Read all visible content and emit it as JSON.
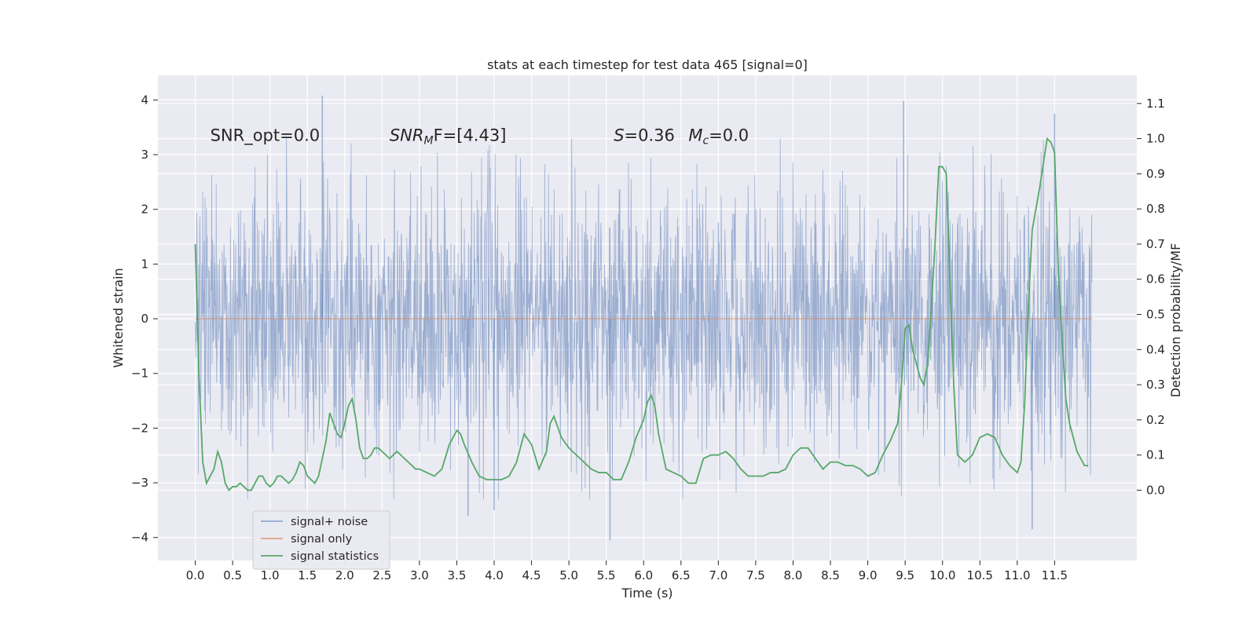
{
  "chart_data": {
    "type": "line",
    "title": "stats at each timestep for test data 465 [signal=0]",
    "xlabel": "Time (s)",
    "ylabel_left": "Whitened strain",
    "ylabel_right": "Detection probability/MF",
    "xlim": [
      -0.5,
      12.6
    ],
    "ylim_left": [
      -4.42,
      4.45
    ],
    "ylim_right": [
      -0.2,
      1.18
    ],
    "x_ticks": [
      0.0,
      0.5,
      1.0,
      1.5,
      2.0,
      2.5,
      3.0,
      3.5,
      4.0,
      4.5,
      5.0,
      5.5,
      6.0,
      6.5,
      7.0,
      7.5,
      8.0,
      8.5,
      9.0,
      9.5,
      10.0,
      10.5,
      11.0,
      11.5
    ],
    "x_tick_labels": [
      "0.0",
      "0.5",
      "1.0",
      "1.5",
      "2.0",
      "2.5",
      "3.0",
      "3.5",
      "4.0",
      "4.5",
      "5.0",
      "5.5",
      "6.0",
      "6.5",
      "7.0",
      "7.5",
      "8.0",
      "8.5",
      "9.0",
      "9.5",
      "10.0",
      "10.5",
      "11.0",
      "11.5"
    ],
    "y_left_ticks": [
      -4,
      -3,
      -2,
      -1,
      0,
      1,
      2,
      3,
      4
    ],
    "y_left_tick_labels": [
      "−4",
      "−3",
      "−2",
      "−1",
      "0",
      "1",
      "2",
      "3",
      "4"
    ],
    "y_right_ticks": [
      0.0,
      0.1,
      0.2,
      0.3,
      0.4,
      0.5,
      0.6,
      0.7,
      0.8,
      0.9,
      1.0,
      1.1
    ],
    "y_right_tick_labels": [
      "0.0",
      "0.1",
      "0.2",
      "0.3",
      "0.4",
      "0.5",
      "0.6",
      "0.7",
      "0.8",
      "0.9",
      "1.0",
      "1.1"
    ],
    "grid": true,
    "legend_position": "lower-left",
    "series": [
      {
        "name": "signal+ noise",
        "axis": "left",
        "color": "#4c72b0",
        "description_x_range": [
          0.0,
          12.0
        ],
        "typical_envelope": [
          -1.9,
          1.9
        ],
        "peak_spikes": [
          {
            "x": 1.7,
            "y": 4.08
          },
          {
            "x": 9.48,
            "y": 3.98
          },
          {
            "x": 11.5,
            "y": 3.75
          },
          {
            "x": 5.55,
            "y": -4.05
          },
          {
            "x": 11.2,
            "y": -3.85
          },
          {
            "x": 4.0,
            "y": -3.5
          },
          {
            "x": 3.65,
            "y": -3.6
          }
        ]
      },
      {
        "name": "signal only",
        "axis": "left",
        "color": "#dd8452",
        "x": [
          0.0,
          12.0
        ],
        "y": [
          0.0,
          0.0
        ]
      },
      {
        "name": "signal statistics",
        "axis": "right",
        "color": "#55a868",
        "x": [
          0.0,
          0.05,
          0.1,
          0.15,
          0.2,
          0.25,
          0.3,
          0.35,
          0.4,
          0.45,
          0.5,
          0.55,
          0.6,
          0.65,
          0.7,
          0.75,
          0.8,
          0.85,
          0.9,
          0.95,
          1.0,
          1.05,
          1.1,
          1.15,
          1.2,
          1.25,
          1.3,
          1.35,
          1.4,
          1.45,
          1.5,
          1.55,
          1.6,
          1.65,
          1.7,
          1.75,
          1.8,
          1.85,
          1.9,
          1.95,
          2.0,
          2.05,
          2.1,
          2.15,
          2.2,
          2.25,
          2.3,
          2.35,
          2.4,
          2.45,
          2.5,
          2.55,
          2.6,
          2.65,
          2.7,
          2.75,
          2.8,
          2.85,
          2.9,
          2.95,
          3.0,
          3.1,
          3.2,
          3.3,
          3.4,
          3.5,
          3.55,
          3.6,
          3.7,
          3.8,
          3.9,
          4.0,
          4.1,
          4.2,
          4.3,
          4.4,
          4.5,
          4.6,
          4.7,
          4.75,
          4.8,
          4.9,
          5.0,
          5.1,
          5.2,
          5.3,
          5.4,
          5.5,
          5.6,
          5.7,
          5.8,
          5.9,
          6.0,
          6.05,
          6.1,
          6.15,
          6.2,
          6.3,
          6.4,
          6.5,
          6.6,
          6.7,
          6.8,
          6.9,
          7.0,
          7.1,
          7.2,
          7.3,
          7.4,
          7.5,
          7.6,
          7.7,
          7.8,
          7.9,
          8.0,
          8.1,
          8.2,
          8.3,
          8.4,
          8.5,
          8.6,
          8.7,
          8.8,
          8.9,
          9.0,
          9.1,
          9.2,
          9.3,
          9.4,
          9.45,
          9.5,
          9.55,
          9.6,
          9.7,
          9.75,
          9.8,
          9.85,
          9.9,
          9.95,
          10.0,
          10.05,
          10.1,
          10.15,
          10.2,
          10.3,
          10.4,
          10.5,
          10.6,
          10.7,
          10.8,
          10.9,
          11.0,
          11.05,
          11.1,
          11.15,
          11.2,
          11.25,
          11.3,
          11.35,
          11.4,
          11.45,
          11.5,
          11.55,
          11.6,
          11.65,
          11.7,
          11.75,
          11.8,
          11.85,
          11.9,
          11.95
        ],
        "y": [
          0.7,
          0.32,
          0.08,
          0.02,
          0.04,
          0.06,
          0.11,
          0.08,
          0.02,
          0.0,
          0.01,
          0.01,
          0.02,
          0.01,
          0.0,
          0.0,
          0.02,
          0.04,
          0.04,
          0.02,
          0.01,
          0.02,
          0.04,
          0.04,
          0.03,
          0.02,
          0.03,
          0.05,
          0.08,
          0.07,
          0.04,
          0.03,
          0.02,
          0.04,
          0.09,
          0.14,
          0.22,
          0.19,
          0.16,
          0.15,
          0.19,
          0.24,
          0.26,
          0.2,
          0.12,
          0.09,
          0.09,
          0.1,
          0.12,
          0.12,
          0.11,
          0.1,
          0.09,
          0.1,
          0.11,
          0.1,
          0.09,
          0.08,
          0.07,
          0.06,
          0.06,
          0.05,
          0.04,
          0.06,
          0.13,
          0.17,
          0.16,
          0.13,
          0.08,
          0.04,
          0.03,
          0.03,
          0.03,
          0.04,
          0.08,
          0.16,
          0.13,
          0.06,
          0.11,
          0.19,
          0.21,
          0.15,
          0.12,
          0.1,
          0.08,
          0.06,
          0.05,
          0.05,
          0.03,
          0.03,
          0.08,
          0.15,
          0.2,
          0.25,
          0.27,
          0.24,
          0.16,
          0.06,
          0.05,
          0.04,
          0.02,
          0.02,
          0.09,
          0.1,
          0.1,
          0.11,
          0.09,
          0.06,
          0.04,
          0.04,
          0.04,
          0.05,
          0.05,
          0.06,
          0.1,
          0.12,
          0.12,
          0.09,
          0.06,
          0.08,
          0.08,
          0.07,
          0.07,
          0.06,
          0.04,
          0.05,
          0.1,
          0.14,
          0.19,
          0.3,
          0.46,
          0.47,
          0.4,
          0.32,
          0.3,
          0.36,
          0.52,
          0.7,
          0.92,
          0.92,
          0.9,
          0.6,
          0.3,
          0.1,
          0.08,
          0.1,
          0.15,
          0.16,
          0.15,
          0.1,
          0.07,
          0.05,
          0.08,
          0.25,
          0.53,
          0.74,
          0.8,
          0.86,
          0.93,
          1.0,
          0.99,
          0.96,
          0.62,
          0.43,
          0.26,
          0.19,
          0.15,
          0.11,
          0.09,
          0.07,
          0.07
        ]
      }
    ],
    "annotations": [
      {
        "text": "SNR_opt=0.0",
        "x": 0.2,
        "y": 3.25
      },
      {
        "text_main": "SNR",
        "text_sub": "M",
        "text_rest": "F=[4.43]",
        "x": 2.6,
        "y": 3.25
      },
      {
        "text_main": "S",
        "text_rest": "=0.36",
        "x": 5.6,
        "y": 3.25
      },
      {
        "text_main": "M",
        "text_sub": "c",
        "text_rest": "=0.0",
        "x": 6.6,
        "y": 3.25
      }
    ]
  }
}
